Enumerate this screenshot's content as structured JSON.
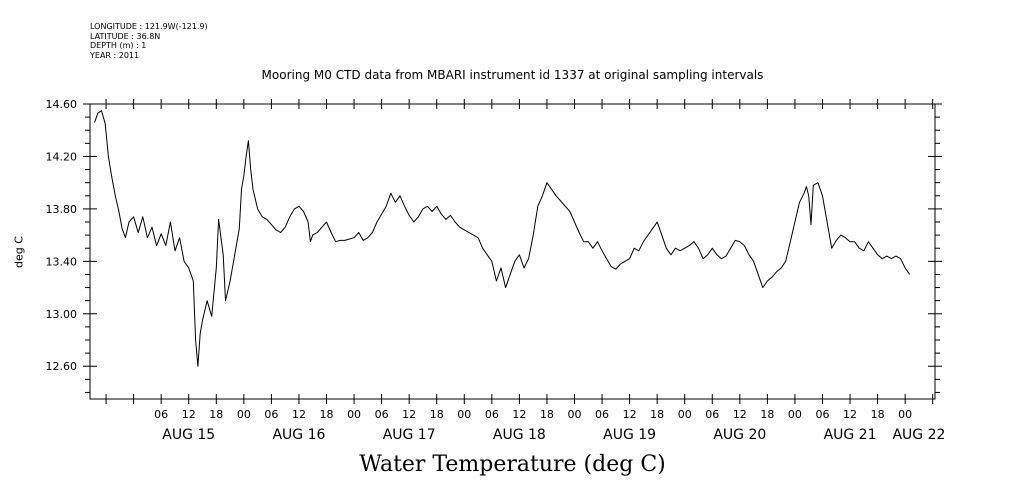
{
  "meta": {
    "longitude": "LONGITUDE : 121.9W(-121.9)",
    "latitude": "LATITUDE : 36.8N",
    "depth": "DEPTH (m) : 1",
    "year": "YEAR : 2011"
  },
  "colors": {
    "line": "#000000",
    "background": "#ffffff"
  },
  "chart_data": {
    "type": "line",
    "title": "Mooring M0 CTD data from MBARI instrument id 1337 at original sampling intervals",
    "xlabel": "Water Temperature (deg C)",
    "ylabel": "deg C",
    "ylim": [
      12.35,
      14.6
    ],
    "x_units": "hours since AUG 15 00:00",
    "xlim": [
      -9.5,
      174.5
    ],
    "y_ticks": [
      12.6,
      13.0,
      13.4,
      13.8,
      14.2,
      14.6
    ],
    "y_tick_labels": [
      "12.60",
      "13.00",
      "13.40",
      "13.80",
      "14.20",
      "14.60"
    ],
    "x_minor_ticks": [
      -6,
      0,
      6,
      12,
      18,
      24,
      30,
      36,
      42,
      48,
      54,
      60,
      66,
      72,
      78,
      84,
      90,
      96,
      102,
      108,
      114,
      120,
      126,
      132,
      138,
      144,
      150,
      156,
      162,
      168,
      174
    ],
    "x_hour_labels": [
      {
        "x": 6,
        "label": "06"
      },
      {
        "x": 12,
        "label": "12"
      },
      {
        "x": 18,
        "label": "18"
      },
      {
        "x": 24,
        "label": "00"
      },
      {
        "x": 30,
        "label": "06"
      },
      {
        "x": 36,
        "label": "12"
      },
      {
        "x": 42,
        "label": "18"
      },
      {
        "x": 48,
        "label": "00"
      },
      {
        "x": 54,
        "label": "06"
      },
      {
        "x": 60,
        "label": "12"
      },
      {
        "x": 66,
        "label": "18"
      },
      {
        "x": 72,
        "label": "00"
      },
      {
        "x": 78,
        "label": "06"
      },
      {
        "x": 84,
        "label": "12"
      },
      {
        "x": 90,
        "label": "18"
      },
      {
        "x": 96,
        "label": "00"
      },
      {
        "x": 102,
        "label": "06"
      },
      {
        "x": 108,
        "label": "12"
      },
      {
        "x": 114,
        "label": "18"
      },
      {
        "x": 120,
        "label": "00"
      },
      {
        "x": 126,
        "label": "06"
      },
      {
        "x": 132,
        "label": "12"
      },
      {
        "x": 138,
        "label": "18"
      },
      {
        "x": 144,
        "label": "00"
      },
      {
        "x": 150,
        "label": "06"
      },
      {
        "x": 156,
        "label": "12"
      },
      {
        "x": 162,
        "label": "18"
      },
      {
        "x": 168,
        "label": "00"
      }
    ],
    "x_day_labels": [
      {
        "x": 12,
        "label": "AUG 15"
      },
      {
        "x": 36,
        "label": "AUG 16"
      },
      {
        "x": 60,
        "label": "AUG 17"
      },
      {
        "x": 84,
        "label": "AUG 18"
      },
      {
        "x": 108,
        "label": "AUG 19"
      },
      {
        "x": 132,
        "label": "AUG 20"
      },
      {
        "x": 156,
        "label": "AUG 21"
      },
      {
        "x": 171,
        "label": "AUG 22"
      }
    ],
    "series": [
      {
        "name": "Water Temperature",
        "points": [
          [
            -8.5,
            14.46
          ],
          [
            -7.8,
            14.53
          ],
          [
            -7,
            14.55
          ],
          [
            -6.2,
            14.45
          ],
          [
            -5.5,
            14.2
          ],
          [
            -4.8,
            14.05
          ],
          [
            -4,
            13.9
          ],
          [
            -3.2,
            13.78
          ],
          [
            -2.5,
            13.65
          ],
          [
            -1.8,
            13.58
          ],
          [
            -1,
            13.7
          ],
          [
            0,
            13.74
          ],
          [
            1,
            13.62
          ],
          [
            2,
            13.74
          ],
          [
            3,
            13.58
          ],
          [
            4,
            13.66
          ],
          [
            5,
            13.52
          ],
          [
            6,
            13.61
          ],
          [
            7,
            13.52
          ],
          [
            8,
            13.7
          ],
          [
            9,
            13.48
          ],
          [
            10,
            13.58
          ],
          [
            11,
            13.4
          ],
          [
            12,
            13.35
          ],
          [
            13,
            13.25
          ],
          [
            13.5,
            12.8
          ],
          [
            14,
            12.6
          ],
          [
            14.5,
            12.85
          ],
          [
            15,
            12.95
          ],
          [
            16,
            13.1
          ],
          [
            17,
            12.98
          ],
          [
            18,
            13.35
          ],
          [
            18.5,
            13.72
          ],
          [
            19.5,
            13.45
          ],
          [
            20,
            13.1
          ],
          [
            21,
            13.25
          ],
          [
            22,
            13.45
          ],
          [
            23,
            13.65
          ],
          [
            23.5,
            13.95
          ],
          [
            24,
            14.05
          ],
          [
            24.5,
            14.2
          ],
          [
            25,
            14.32
          ],
          [
            25.5,
            14.1
          ],
          [
            26,
            13.95
          ],
          [
            27,
            13.8
          ],
          [
            28,
            13.74
          ],
          [
            29,
            13.72
          ],
          [
            30,
            13.68
          ],
          [
            31,
            13.64
          ],
          [
            32,
            13.62
          ],
          [
            33,
            13.66
          ],
          [
            34,
            13.74
          ],
          [
            35,
            13.8
          ],
          [
            36,
            13.82
          ],
          [
            37,
            13.78
          ],
          [
            38,
            13.7
          ],
          [
            38.5,
            13.55
          ],
          [
            39,
            13.6
          ],
          [
            40,
            13.62
          ],
          [
            41,
            13.66
          ],
          [
            42,
            13.7
          ],
          [
            43,
            13.62
          ],
          [
            44,
            13.55
          ],
          [
            45,
            13.56
          ],
          [
            46,
            13.56
          ],
          [
            47,
            13.57
          ],
          [
            48,
            13.58
          ],
          [
            49,
            13.62
          ],
          [
            50,
            13.56
          ],
          [
            51,
            13.58
          ],
          [
            52,
            13.62
          ],
          [
            53,
            13.7
          ],
          [
            54,
            13.76
          ],
          [
            55,
            13.82
          ],
          [
            56,
            13.92
          ],
          [
            57,
            13.85
          ],
          [
            58,
            13.9
          ],
          [
            59,
            13.82
          ],
          [
            60,
            13.75
          ],
          [
            61,
            13.7
          ],
          [
            62,
            13.74
          ],
          [
            63,
            13.8
          ],
          [
            64,
            13.82
          ],
          [
            65,
            13.78
          ],
          [
            66,
            13.82
          ],
          [
            67,
            13.76
          ],
          [
            68,
            13.72
          ],
          [
            69,
            13.75
          ],
          [
            70,
            13.7
          ],
          [
            71,
            13.66
          ],
          [
            72,
            13.64
          ],
          [
            73,
            13.62
          ],
          [
            74,
            13.6
          ],
          [
            75,
            13.58
          ],
          [
            76,
            13.5
          ],
          [
            77,
            13.45
          ],
          [
            78,
            13.4
          ],
          [
            79,
            13.25
          ],
          [
            80,
            13.35
          ],
          [
            81,
            13.2
          ],
          [
            82,
            13.3
          ],
          [
            83,
            13.4
          ],
          [
            84,
            13.45
          ],
          [
            85,
            13.35
          ],
          [
            86,
            13.42
          ],
          [
            87,
            13.6
          ],
          [
            88,
            13.82
          ],
          [
            89,
            13.9
          ],
          [
            90,
            14.0
          ],
          [
            91,
            13.95
          ],
          [
            92,
            13.9
          ],
          [
            93,
            13.86
          ],
          [
            94,
            13.82
          ],
          [
            95,
            13.78
          ],
          [
            96,
            13.7
          ],
          [
            97,
            13.62
          ],
          [
            98,
            13.55
          ],
          [
            99,
            13.55
          ],
          [
            100,
            13.5
          ],
          [
            101,
            13.55
          ],
          [
            102,
            13.48
          ],
          [
            103,
            13.42
          ],
          [
            104,
            13.36
          ],
          [
            105,
            13.34
          ],
          [
            106,
            13.38
          ],
          [
            107,
            13.4
          ],
          [
            108,
            13.42
          ],
          [
            109,
            13.5
          ],
          [
            110,
            13.48
          ],
          [
            111,
            13.55
          ],
          [
            112,
            13.6
          ],
          [
            113,
            13.65
          ],
          [
            114,
            13.7
          ],
          [
            115,
            13.6
          ],
          [
            116,
            13.5
          ],
          [
            117,
            13.45
          ],
          [
            118,
            13.5
          ],
          [
            119,
            13.48
          ],
          [
            120,
            13.5
          ],
          [
            121,
            13.52
          ],
          [
            122,
            13.55
          ],
          [
            123,
            13.5
          ],
          [
            124,
            13.42
          ],
          [
            125,
            13.45
          ],
          [
            126,
            13.5
          ],
          [
            127,
            13.45
          ],
          [
            128,
            13.42
          ],
          [
            129,
            13.44
          ],
          [
            130,
            13.5
          ],
          [
            131,
            13.56
          ],
          [
            132,
            13.55
          ],
          [
            133,
            13.52
          ],
          [
            134,
            13.45
          ],
          [
            135,
            13.4
          ],
          [
            136,
            13.3
          ],
          [
            137,
            13.2
          ],
          [
            138,
            13.25
          ],
          [
            139,
            13.28
          ],
          [
            140,
            13.32
          ],
          [
            141,
            13.35
          ],
          [
            142,
            13.4
          ],
          [
            143,
            13.55
          ],
          [
            144,
            13.7
          ],
          [
            145,
            13.85
          ],
          [
            146,
            13.92
          ],
          [
            146.5,
            13.97
          ],
          [
            147,
            13.9
          ],
          [
            147.5,
            13.68
          ],
          [
            148,
            13.98
          ],
          [
            149,
            14.0
          ],
          [
            150,
            13.9
          ],
          [
            151,
            13.7
          ],
          [
            152,
            13.5
          ],
          [
            153,
            13.56
          ],
          [
            154,
            13.6
          ],
          [
            155,
            13.58
          ],
          [
            156,
            13.55
          ],
          [
            157,
            13.55
          ],
          [
            158,
            13.5
          ],
          [
            159,
            13.48
          ],
          [
            160,
            13.55
          ],
          [
            161,
            13.5
          ],
          [
            162,
            13.45
          ],
          [
            163,
            13.42
          ],
          [
            164,
            13.44
          ],
          [
            165,
            13.42
          ],
          [
            166,
            13.44
          ],
          [
            167,
            13.42
          ],
          [
            168,
            13.35
          ],
          [
            169,
            13.3
          ]
        ]
      }
    ]
  }
}
